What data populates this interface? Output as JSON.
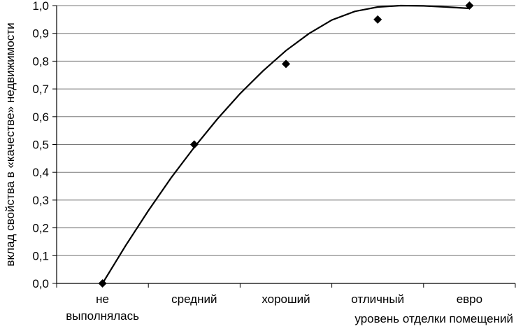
{
  "chart_data": {
    "type": "scatter",
    "title": "",
    "xlabel": "уровень отделки помещений",
    "ylabel": "вклад свойства в «качестве» недвижимости",
    "categories": [
      [
        "не",
        "выполнялась"
      ],
      [
        "средний"
      ],
      [
        "хороший"
      ],
      [
        "отличный"
      ],
      [
        "евро"
      ]
    ],
    "y_ticks": [
      "0,0",
      "0,1",
      "0,2",
      "0,3",
      "0,4",
      "0,5",
      "0,6",
      "0,7",
      "0,8",
      "0,9",
      "1,0"
    ],
    "ylim": [
      0,
      1
    ],
    "grid": true,
    "series": [
      {
        "values": [
          0,
          0.5,
          0.79,
          0.95,
          1.0
        ],
        "marker": "diamond",
        "color": "#000000"
      }
    ],
    "trendline": {
      "type": "polynomial",
      "color": "#000000",
      "samples": [
        {
          "x": 0.0,
          "y": 0.0
        },
        {
          "x": 0.25,
          "y": 0.135
        },
        {
          "x": 0.5,
          "y": 0.262
        },
        {
          "x": 0.75,
          "y": 0.381
        },
        {
          "x": 1.0,
          "y": 0.49
        },
        {
          "x": 1.25,
          "y": 0.591
        },
        {
          "x": 1.5,
          "y": 0.683
        },
        {
          "x": 1.75,
          "y": 0.765
        },
        {
          "x": 2.0,
          "y": 0.838
        },
        {
          "x": 2.25,
          "y": 0.899
        },
        {
          "x": 2.5,
          "y": 0.948
        },
        {
          "x": 2.75,
          "y": 0.979
        },
        {
          "x": 3.0,
          "y": 0.995
        },
        {
          "x": 3.25,
          "y": 1.0
        },
        {
          "x": 3.5,
          "y": 0.999
        },
        {
          "x": 3.75,
          "y": 0.995
        },
        {
          "x": 4.0,
          "y": 0.99
        }
      ]
    }
  }
}
